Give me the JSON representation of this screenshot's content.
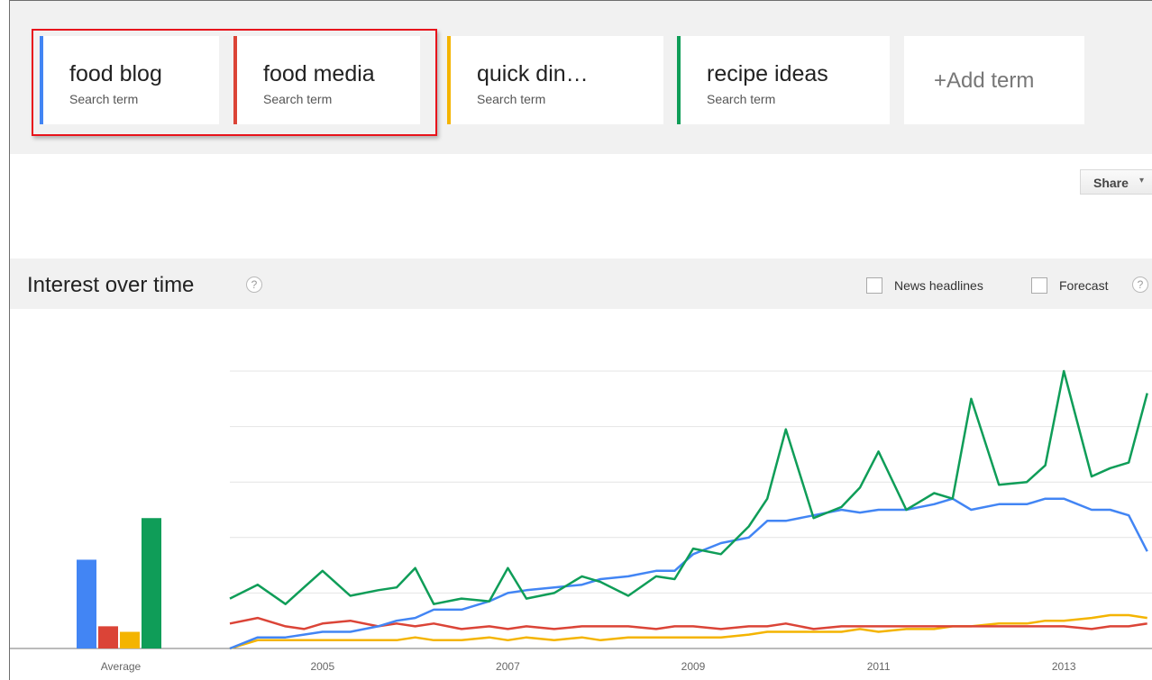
{
  "terms": [
    {
      "name": "food blog",
      "subtitle": "Search term",
      "color": "#4285f4"
    },
    {
      "name": "food media",
      "subtitle": "Search term",
      "color": "#db4437"
    },
    {
      "name": "quick din…",
      "subtitle": "Search term",
      "color": "#f4b400"
    },
    {
      "name": "recipe ideas",
      "subtitle": "Search term",
      "color": "#0f9d58"
    }
  ],
  "add_term_label": "+Add term",
  "share": {
    "label": "Share",
    "caret": "▾"
  },
  "interest": {
    "title": "Interest over time",
    "help_glyph": "?",
    "news_label": "News headlines",
    "forecast_label": "Forecast"
  },
  "chart_data": [
    {
      "type": "bar",
      "categories": [
        "Average"
      ],
      "series": [
        {
          "name": "food blog",
          "values": [
            32
          ],
          "color": "#4285f4"
        },
        {
          "name": "food media",
          "values": [
            8
          ],
          "color": "#db4437"
        },
        {
          "name": "quick din…",
          "values": [
            6
          ],
          "color": "#f4b400"
        },
        {
          "name": "recipe ideas",
          "values": [
            47
          ],
          "color": "#0f9d58"
        }
      ],
      "ylim": [
        0,
        100
      ],
      "xlabel": "Average"
    },
    {
      "type": "line",
      "x_ticks": [
        "2005",
        "2007",
        "2009",
        "2011",
        "2013"
      ],
      "ylim": [
        0,
        100
      ],
      "grid": true,
      "series": [
        {
          "name": "recipe ideas",
          "color": "#0f9d58",
          "x": [
            2004.0,
            2004.3,
            2004.6,
            2004.8,
            2005.0,
            2005.3,
            2005.6,
            2005.8,
            2006.0,
            2006.2,
            2006.5,
            2006.8,
            2007.0,
            2007.2,
            2007.5,
            2007.8,
            2008.0,
            2008.3,
            2008.6,
            2008.8,
            2009.0,
            2009.3,
            2009.6,
            2009.8,
            2010.0,
            2010.3,
            2010.6,
            2010.8,
            2011.0,
            2011.3,
            2011.6,
            2011.8,
            2012.0,
            2012.3,
            2012.6,
            2012.8,
            2013.0,
            2013.3,
            2013.5,
            2013.7,
            2013.9
          ],
          "y": [
            18,
            23,
            16,
            22,
            28,
            19,
            21,
            22,
            29,
            16,
            18,
            17,
            29,
            18,
            20,
            26,
            24,
            19,
            26,
            25,
            36,
            34,
            44,
            54,
            79,
            47,
            51,
            58,
            71,
            50,
            56,
            54,
            90,
            59,
            60,
            66,
            100,
            62,
            65,
            67,
            92
          ]
        },
        {
          "name": "food blog",
          "color": "#4285f4",
          "x": [
            2004.0,
            2004.3,
            2004.6,
            2004.8,
            2005.0,
            2005.3,
            2005.6,
            2005.8,
            2006.0,
            2006.2,
            2006.5,
            2006.8,
            2007.0,
            2007.2,
            2007.5,
            2007.8,
            2008.0,
            2008.3,
            2008.6,
            2008.8,
            2009.0,
            2009.3,
            2009.6,
            2009.8,
            2010.0,
            2010.3,
            2010.6,
            2010.8,
            2011.0,
            2011.3,
            2011.6,
            2011.8,
            2012.0,
            2012.3,
            2012.6,
            2012.8,
            2013.0,
            2013.3,
            2013.5,
            2013.7,
            2013.9
          ],
          "y": [
            0,
            4,
            4,
            5,
            6,
            6,
            8,
            10,
            11,
            14,
            14,
            17,
            20,
            21,
            22,
            23,
            25,
            26,
            28,
            28,
            34,
            38,
            40,
            46,
            46,
            48,
            50,
            49,
            50,
            50,
            52,
            54,
            50,
            52,
            52,
            54,
            54,
            50,
            50,
            48,
            35
          ]
        },
        {
          "name": "food media",
          "color": "#db4437",
          "x": [
            2004.0,
            2004.3,
            2004.6,
            2004.8,
            2005.0,
            2005.3,
            2005.6,
            2005.8,
            2006.0,
            2006.2,
            2006.5,
            2006.8,
            2007.0,
            2007.2,
            2007.5,
            2007.8,
            2008.0,
            2008.3,
            2008.6,
            2008.8,
            2009.0,
            2009.3,
            2009.6,
            2009.8,
            2010.0,
            2010.3,
            2010.6,
            2010.8,
            2011.0,
            2011.3,
            2011.6,
            2011.8,
            2012.0,
            2012.3,
            2012.6,
            2012.8,
            2013.0,
            2013.3,
            2013.5,
            2013.7,
            2013.9
          ],
          "y": [
            9,
            11,
            8,
            7,
            9,
            10,
            8,
            9,
            8,
            9,
            7,
            8,
            7,
            8,
            7,
            8,
            8,
            8,
            7,
            8,
            8,
            7,
            8,
            8,
            9,
            7,
            8,
            8,
            8,
            8,
            8,
            8,
            8,
            8,
            8,
            8,
            8,
            7,
            8,
            8,
            9
          ]
        },
        {
          "name": "quick din…",
          "color": "#f4b400",
          "x": [
            2004.0,
            2004.3,
            2004.6,
            2004.8,
            2005.0,
            2005.3,
            2005.6,
            2005.8,
            2006.0,
            2006.2,
            2006.5,
            2006.8,
            2007.0,
            2007.2,
            2007.5,
            2007.8,
            2008.0,
            2008.3,
            2008.6,
            2008.8,
            2009.0,
            2009.3,
            2009.6,
            2009.8,
            2010.0,
            2010.3,
            2010.6,
            2010.8,
            2011.0,
            2011.3,
            2011.6,
            2011.8,
            2012.0,
            2012.3,
            2012.6,
            2012.8,
            2013.0,
            2013.3,
            2013.5,
            2013.7,
            2013.9
          ],
          "y": [
            0,
            3,
            3,
            3,
            3,
            3,
            3,
            3,
            4,
            3,
            3,
            4,
            3,
            4,
            3,
            4,
            3,
            4,
            4,
            4,
            4,
            4,
            5,
            6,
            6,
            6,
            6,
            7,
            6,
            7,
            7,
            8,
            8,
            9,
            9,
            10,
            10,
            11,
            12,
            12,
            11
          ]
        }
      ]
    }
  ]
}
